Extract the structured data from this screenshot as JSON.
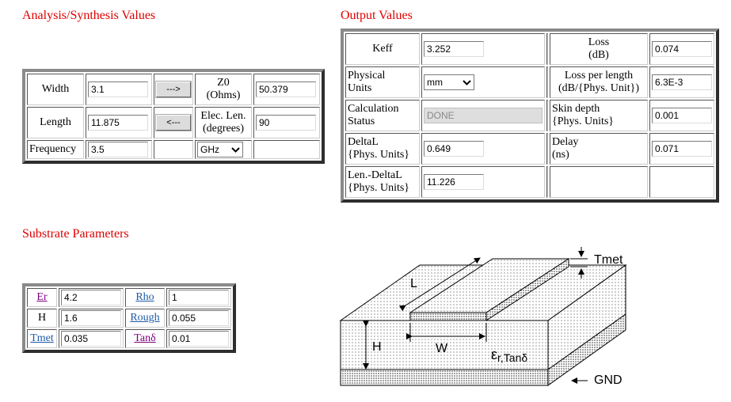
{
  "headings": {
    "analysis": "Analysis/Synthesis Values",
    "output": "Output Values",
    "substrate": "Substrate Parameters"
  },
  "analysis": {
    "width_label": "Width",
    "width_value": "3.1",
    "analyze_button": "--->",
    "z0_label_1": "Z0",
    "z0_label_2": "(Ohms)",
    "z0_value": "50.379",
    "length_label": "Length",
    "length_value": "11.875",
    "synthesize_button": "<---",
    "elec_len_label_1": "Elec. Len.",
    "elec_len_label_2": "(degrees)",
    "elec_len_value": "90",
    "frequency_label": "Frequency",
    "frequency_value": "3.5",
    "frequency_unit": "GHz"
  },
  "output": {
    "keff_label": "Keff",
    "keff_value": "3.252",
    "loss_label_1": "Loss",
    "loss_label_2": "(dB)",
    "loss_value": "0.074",
    "phys_units_label_1": "Physical",
    "phys_units_label_2": "Units",
    "phys_units_value": "mm",
    "loss_per_length_label_1": "Loss per length",
    "loss_per_length_label_2": "(dB/{Phys. Unit})",
    "loss_per_length_value": "6.3E-3",
    "calc_status_label_1": "Calculation",
    "calc_status_label_2": "Status",
    "calc_status_value": "DONE",
    "skin_depth_label_1": "Skin depth",
    "skin_depth_label_2": "{Phys. Units}",
    "skin_depth_value": "0.001",
    "deltal_label_1": "DeltaL",
    "deltal_label_2": "{Phys. Units}",
    "deltal_value": "0.649",
    "delay_label_1": "Delay",
    "delay_label_2": "(ns)",
    "delay_value": "0.071",
    "len_deltal_label_1": "Len.-DeltaL",
    "len_deltal_label_2": "{Phys. Units}",
    "len_deltal_value": "11.226"
  },
  "substrate": {
    "er_label": "Er",
    "er_value": "4.2",
    "rho_label": "Rho",
    "rho_value": "1",
    "h_label": "H",
    "h_value": "1.6",
    "rough_label": "Rough",
    "rough_value": "0.055",
    "tmet_label": "Tmet",
    "tmet_value": "0.035",
    "tand_label": "Tanδ",
    "tand_value": "0.01"
  },
  "diagram": {
    "tmet": "Tmet",
    "l": "L",
    "h": "H",
    "w": "W",
    "eps": "ε",
    "eps_sub": "r,Tanδ",
    "gnd": "GND"
  },
  "colors": {
    "heading": "#e00000",
    "link_visited": "#800080",
    "link": "#1e5aa8"
  }
}
